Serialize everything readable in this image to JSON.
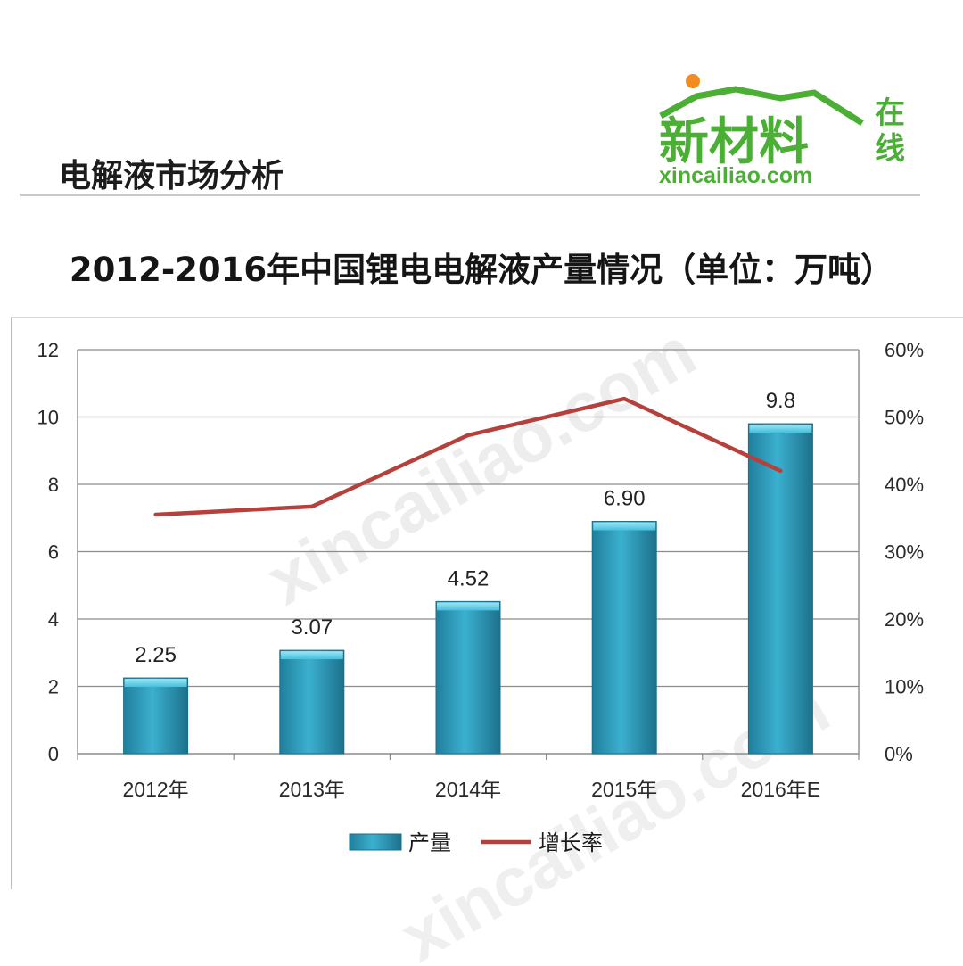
{
  "header": {
    "title": "电解液市场分析"
  },
  "logo": {
    "main": "新材料",
    "side": "在线",
    "url": "xincailiao.com"
  },
  "chart_data": {
    "type": "bar",
    "title": "2012-2016年中国锂电电解液产量情况（单位：万吨）",
    "categories": [
      "2012年",
      "2013年",
      "2014年",
      "2015年",
      "2016年E"
    ],
    "series": [
      {
        "name": "产量",
        "type": "bar",
        "axis": "left",
        "values": [
          2.25,
          3.07,
          4.52,
          6.9,
          9.8
        ],
        "labels": [
          "2.25",
          "3.07",
          "4.52",
          "6.90",
          "9.8"
        ]
      },
      {
        "name": "增长率",
        "type": "line",
        "axis": "right",
        "values": [
          0.355,
          0.367,
          0.473,
          0.527,
          0.42
        ]
      }
    ],
    "ylim": [
      0,
      12
    ],
    "yticks": [
      "0",
      "2",
      "4",
      "6",
      "8",
      "10",
      "12"
    ],
    "y2lim": [
      0,
      0.6
    ],
    "y2ticks": [
      "0%",
      "10%",
      "20%",
      "30%",
      "40%",
      "50%",
      "60%"
    ],
    "grid": true,
    "legend": "bottom",
    "colors": {
      "bar": "#3bb0cf",
      "bar_dark": "#1f7f9c",
      "line": "#b5403c",
      "grid": "#8c8c8c"
    }
  },
  "watermark": "xincailiao.com"
}
